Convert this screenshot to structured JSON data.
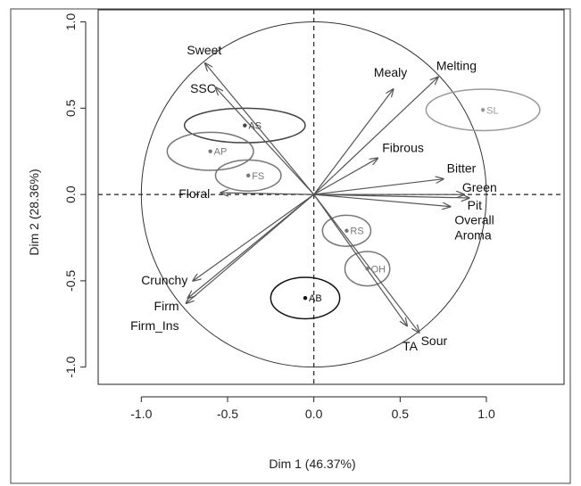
{
  "chart_data": {
    "type": "scatter",
    "subtype": "correlation-circle-biplot",
    "title": "",
    "xlabel": "Dim 1 (46.37%)",
    "ylabel": "Dim 2 (28.36%)",
    "xlim": [
      -1.25,
      1.45
    ],
    "ylim": [
      -1.1,
      1.07
    ],
    "x_ticks": [
      -1.0,
      -0.5,
      0.0,
      0.5,
      1.0
    ],
    "y_ticks": [
      -1.0,
      -0.5,
      0.0,
      0.5,
      1.0
    ],
    "x_tick_labels": [
      "-1.0",
      "-0.5",
      "0.0",
      "0.5",
      "1.0"
    ],
    "y_tick_labels": [
      "-1.0",
      "-0.5",
      "0.0",
      "0.5",
      "1.0"
    ],
    "grid": false,
    "unit_circle": true,
    "reference_lines": [
      "x=0",
      "y=0"
    ],
    "variables": [
      {
        "label": "Sweet",
        "x": -0.63,
        "y": 0.76
      },
      {
        "label": "SSC",
        "x": -0.57,
        "y": 0.62
      },
      {
        "label": "Floral",
        "x": -0.54,
        "y": 0.01
      },
      {
        "label": "Crunchy",
        "x": -0.7,
        "y": -0.5
      },
      {
        "label": "Firm",
        "x": -0.73,
        "y": -0.6
      },
      {
        "label": "Firm_Ins",
        "x": -0.74,
        "y": -0.63
      },
      {
        "label": "Mealy",
        "x": 0.46,
        "y": 0.61
      },
      {
        "label": "Melting",
        "x": 0.72,
        "y": 0.68
      },
      {
        "label": "Fibrous",
        "x": 0.37,
        "y": 0.21
      },
      {
        "label": "Bitter",
        "x": 0.75,
        "y": 0.09
      },
      {
        "label": "Green",
        "x": 0.87,
        "y": 0.0
      },
      {
        "label": "Pit",
        "x": 0.9,
        "y": -0.02
      },
      {
        "label": "Overall Aroma",
        "x": 0.79,
        "y": -0.07
      },
      {
        "label": "Sour",
        "x": 0.61,
        "y": -0.8
      },
      {
        "label": "TA",
        "x": 0.54,
        "y": -0.76
      }
    ],
    "groups": [
      {
        "label": "AS",
        "x": -0.4,
        "y": 0.4,
        "rx": 0.35,
        "ry": 0.1,
        "color": "#444444"
      },
      {
        "label": "AP",
        "x": -0.6,
        "y": 0.25,
        "rx": 0.25,
        "ry": 0.11,
        "color": "#777777"
      },
      {
        "label": "FS",
        "x": -0.38,
        "y": 0.11,
        "rx": 0.19,
        "ry": 0.09,
        "color": "#777777"
      },
      {
        "label": "SL",
        "x": 0.98,
        "y": 0.49,
        "rx": 0.33,
        "ry": 0.12,
        "color": "#999999"
      },
      {
        "label": "RS",
        "x": 0.19,
        "y": -0.21,
        "rx": 0.14,
        "ry": 0.09,
        "color": "#777777"
      },
      {
        "label": "OH",
        "x": 0.31,
        "y": -0.43,
        "rx": 0.13,
        "ry": 0.1,
        "color": "#777777"
      },
      {
        "label": "AB",
        "x": -0.05,
        "y": -0.6,
        "rx": 0.2,
        "ry": 0.12,
        "color": "#111111"
      }
    ]
  }
}
